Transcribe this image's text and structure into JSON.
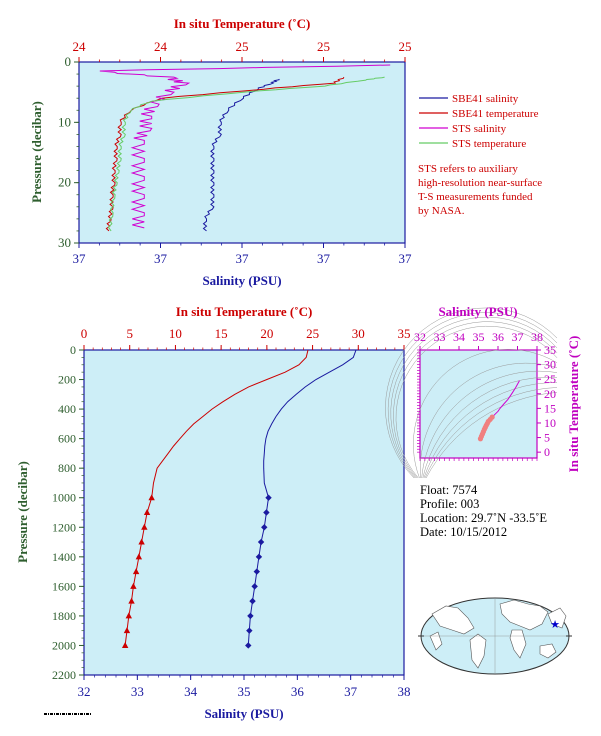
{
  "top_chart": {
    "top_axis_label": "In situ Temperature (˚C)",
    "top_ticks": [
      "24",
      "24",
      "25",
      "25",
      "25"
    ],
    "bottom_axis_label": "Salinity (PSU)",
    "bottom_ticks": [
      "37",
      "37",
      "37",
      "37",
      "37"
    ],
    "left_axis_label": "Pressure (decibar)",
    "left_ticks": [
      "0",
      "10",
      "20",
      "30"
    ],
    "legend": [
      {
        "label": "SBE41 salinity",
        "color": "#1a1aa0"
      },
      {
        "label": "SBE41 temperature",
        "color": "#cc0000"
      },
      {
        "label": "STS salinity",
        "color": "#d000d0"
      },
      {
        "label": "STS temperature",
        "color": "#66cc66"
      }
    ],
    "note": [
      "STS refers to auxiliary",
      "high-resolution near-surface",
      "T-S measurements funded",
      "by NASA."
    ]
  },
  "bottom_chart": {
    "top_axis_label": "In situ Temperature (˚C)",
    "top_ticks": [
      "0",
      "5",
      "10",
      "15",
      "20",
      "25",
      "30",
      "35"
    ],
    "bottom_axis_label": "Salinity (PSU)",
    "bottom_ticks": [
      "32",
      "33",
      "34",
      "35",
      "36",
      "37",
      "38"
    ],
    "left_axis_label": "Pressure (decibar)",
    "left_ticks": [
      "0",
      "200",
      "400",
      "600",
      "800",
      "1000",
      "1200",
      "1400",
      "1600",
      "1800",
      "2000",
      "2200"
    ]
  },
  "ts_chart": {
    "top_axis_label": "Salinity (PSU)",
    "top_ticks": [
      "32",
      "33",
      "34",
      "35",
      "36",
      "37",
      "38"
    ],
    "right_axis_label": "In situ Temperature (˚C)",
    "right_ticks": [
      "0",
      "5",
      "10",
      "15",
      "20",
      "25",
      "30",
      "35"
    ]
  },
  "float_info": {
    "float": "Float:  7574",
    "profile": "Profile:  003",
    "location": "Location:  29.7˚N  -33.5˚E",
    "date": "Date:  10/15/2012"
  },
  "colors": {
    "plot_bg": "#cdeef7",
    "temperature": "#cc0000",
    "salinity": "#1a1aa0",
    "sts_salinity": "#d000d0",
    "sts_temperature": "#66cc66",
    "ts_line": "#d000d0",
    "ts_points": "#f08080",
    "map_marker": "#0000cc"
  },
  "chart_data": [
    {
      "type": "line",
      "title": "",
      "xlabel": "Salinity (PSU)",
      "x2label": "In situ Temperature (˚C)",
      "ylabel": "Pressure (decibar)",
      "ylim": [
        0,
        30
      ],
      "y_inverted": true,
      "series": [
        {
          "name": "SBE41 salinity",
          "axis": "salinity",
          "x": [
            37.15,
            37.14,
            37.12,
            37.1,
            37.08,
            37.07,
            37.07,
            37.06,
            37.06,
            37.06,
            37.06,
            37.06,
            37.06,
            37.05,
            37.05
          ],
          "y": [
            2.8,
            3.5,
            4.5,
            6,
            8,
            10,
            12,
            14,
            16,
            18,
            20,
            22,
            24,
            26,
            28
          ]
        },
        {
          "name": "SBE41 temperature",
          "axis": "temperature",
          "x": [
            25.0,
            24.95,
            24.6,
            24.1,
            23.95,
            23.9,
            23.9,
            23.88,
            23.88,
            23.87,
            23.87,
            23.86,
            23.86,
            23.85,
            23.84
          ],
          "y": [
            2.5,
            3.5,
            4.5,
            6,
            8,
            10,
            12,
            14,
            16,
            18,
            20,
            22,
            24,
            26,
            28
          ]
        },
        {
          "name": "STS salinity",
          "axis": "salinity",
          "x": [
            37.3,
            36.9,
            37.0,
            37.02,
            37.0,
            36.98,
            36.97,
            36.97,
            36.96,
            36.96,
            36.96,
            36.96,
            36.96,
            36.96
          ],
          "y": [
            0.5,
            1.5,
            2.5,
            3.5,
            5,
            7,
            9,
            11,
            13,
            16,
            19,
            22,
            25,
            27.5
          ]
        },
        {
          "name": "STS temperature",
          "axis": "temperature",
          "x": [
            25.2,
            25.1,
            24.9,
            24.5,
            24.05,
            23.95,
            23.92,
            23.92,
            23.9,
            23.9,
            23.89,
            23.88,
            23.87,
            23.86,
            23.85
          ],
          "y": [
            2.5,
            3,
            4,
            5,
            6.5,
            8,
            10,
            12,
            14,
            16,
            18,
            20,
            22,
            25,
            28
          ]
        }
      ]
    },
    {
      "type": "line",
      "title": "",
      "xlabel": "Salinity (PSU)",
      "x2label": "In situ Temperature (˚C)",
      "ylabel": "Pressure (decibar)",
      "xlim": [
        32,
        38
      ],
      "x2lim": [
        0,
        35
      ],
      "ylim": [
        0,
        2200
      ],
      "y_inverted": true,
      "series": [
        {
          "name": "",
          "axis": "temperature",
          "x": [
            24.5,
            24.3,
            23.5,
            22.0,
            20.0,
            18.0,
            16.5,
            15.2,
            14.0,
            13.0,
            12.0,
            11.2,
            10.5,
            9.8,
            9.2,
            8.6,
            8.0,
            7.6,
            7.4,
            6.9,
            6.6,
            6.3,
            6.0,
            5.7,
            5.4,
            5.2,
            4.9,
            4.7,
            4.5
          ],
          "y": [
            0,
            50,
            100,
            150,
            200,
            250,
            300,
            350,
            400,
            450,
            500,
            550,
            600,
            650,
            700,
            750,
            800,
            900,
            1000,
            1100,
            1200,
            1300,
            1400,
            1500,
            1600,
            1700,
            1800,
            1900,
            2000
          ]
        },
        {
          "name": "",
          "axis": "salinity",
          "x": [
            37.1,
            37.05,
            36.85,
            36.6,
            36.35,
            36.15,
            35.98,
            35.82,
            35.7,
            35.6,
            35.52,
            35.45,
            35.41,
            35.39,
            35.38,
            35.37,
            35.37,
            35.38,
            35.46,
            35.42,
            35.38,
            35.32,
            35.28,
            35.24,
            35.2,
            35.16,
            35.12,
            35.1,
            35.08
          ],
          "y": [
            0,
            50,
            100,
            150,
            200,
            250,
            300,
            350,
            400,
            450,
            500,
            550,
            600,
            650,
            700,
            750,
            800,
            900,
            1000,
            1100,
            1200,
            1300,
            1400,
            1500,
            1600,
            1700,
            1800,
            1900,
            2000
          ]
        }
      ]
    },
    {
      "type": "scatter",
      "title": "",
      "xlabel": "Salinity (PSU)",
      "ylabel": "In situ Temperature (˚C)",
      "xlim": [
        32,
        38
      ],
      "ylim": [
        -2,
        35
      ],
      "series": [
        {
          "name": "",
          "x": [
            37.1,
            36.9,
            36.7,
            36.5,
            36.3,
            36.1,
            36.0,
            35.85,
            35.7,
            35.6,
            35.5,
            35.45,
            35.4,
            35.35,
            35.3,
            35.25,
            35.2,
            35.15,
            35.1
          ],
          "y": [
            24.5,
            22.0,
            20.0,
            18.0,
            16.5,
            15.0,
            14.0,
            13.0,
            12.0,
            11.2,
            10.5,
            9.8,
            9.2,
            8.5,
            7.8,
            7.0,
            6.2,
            5.4,
            4.6
          ]
        }
      ]
    }
  ]
}
